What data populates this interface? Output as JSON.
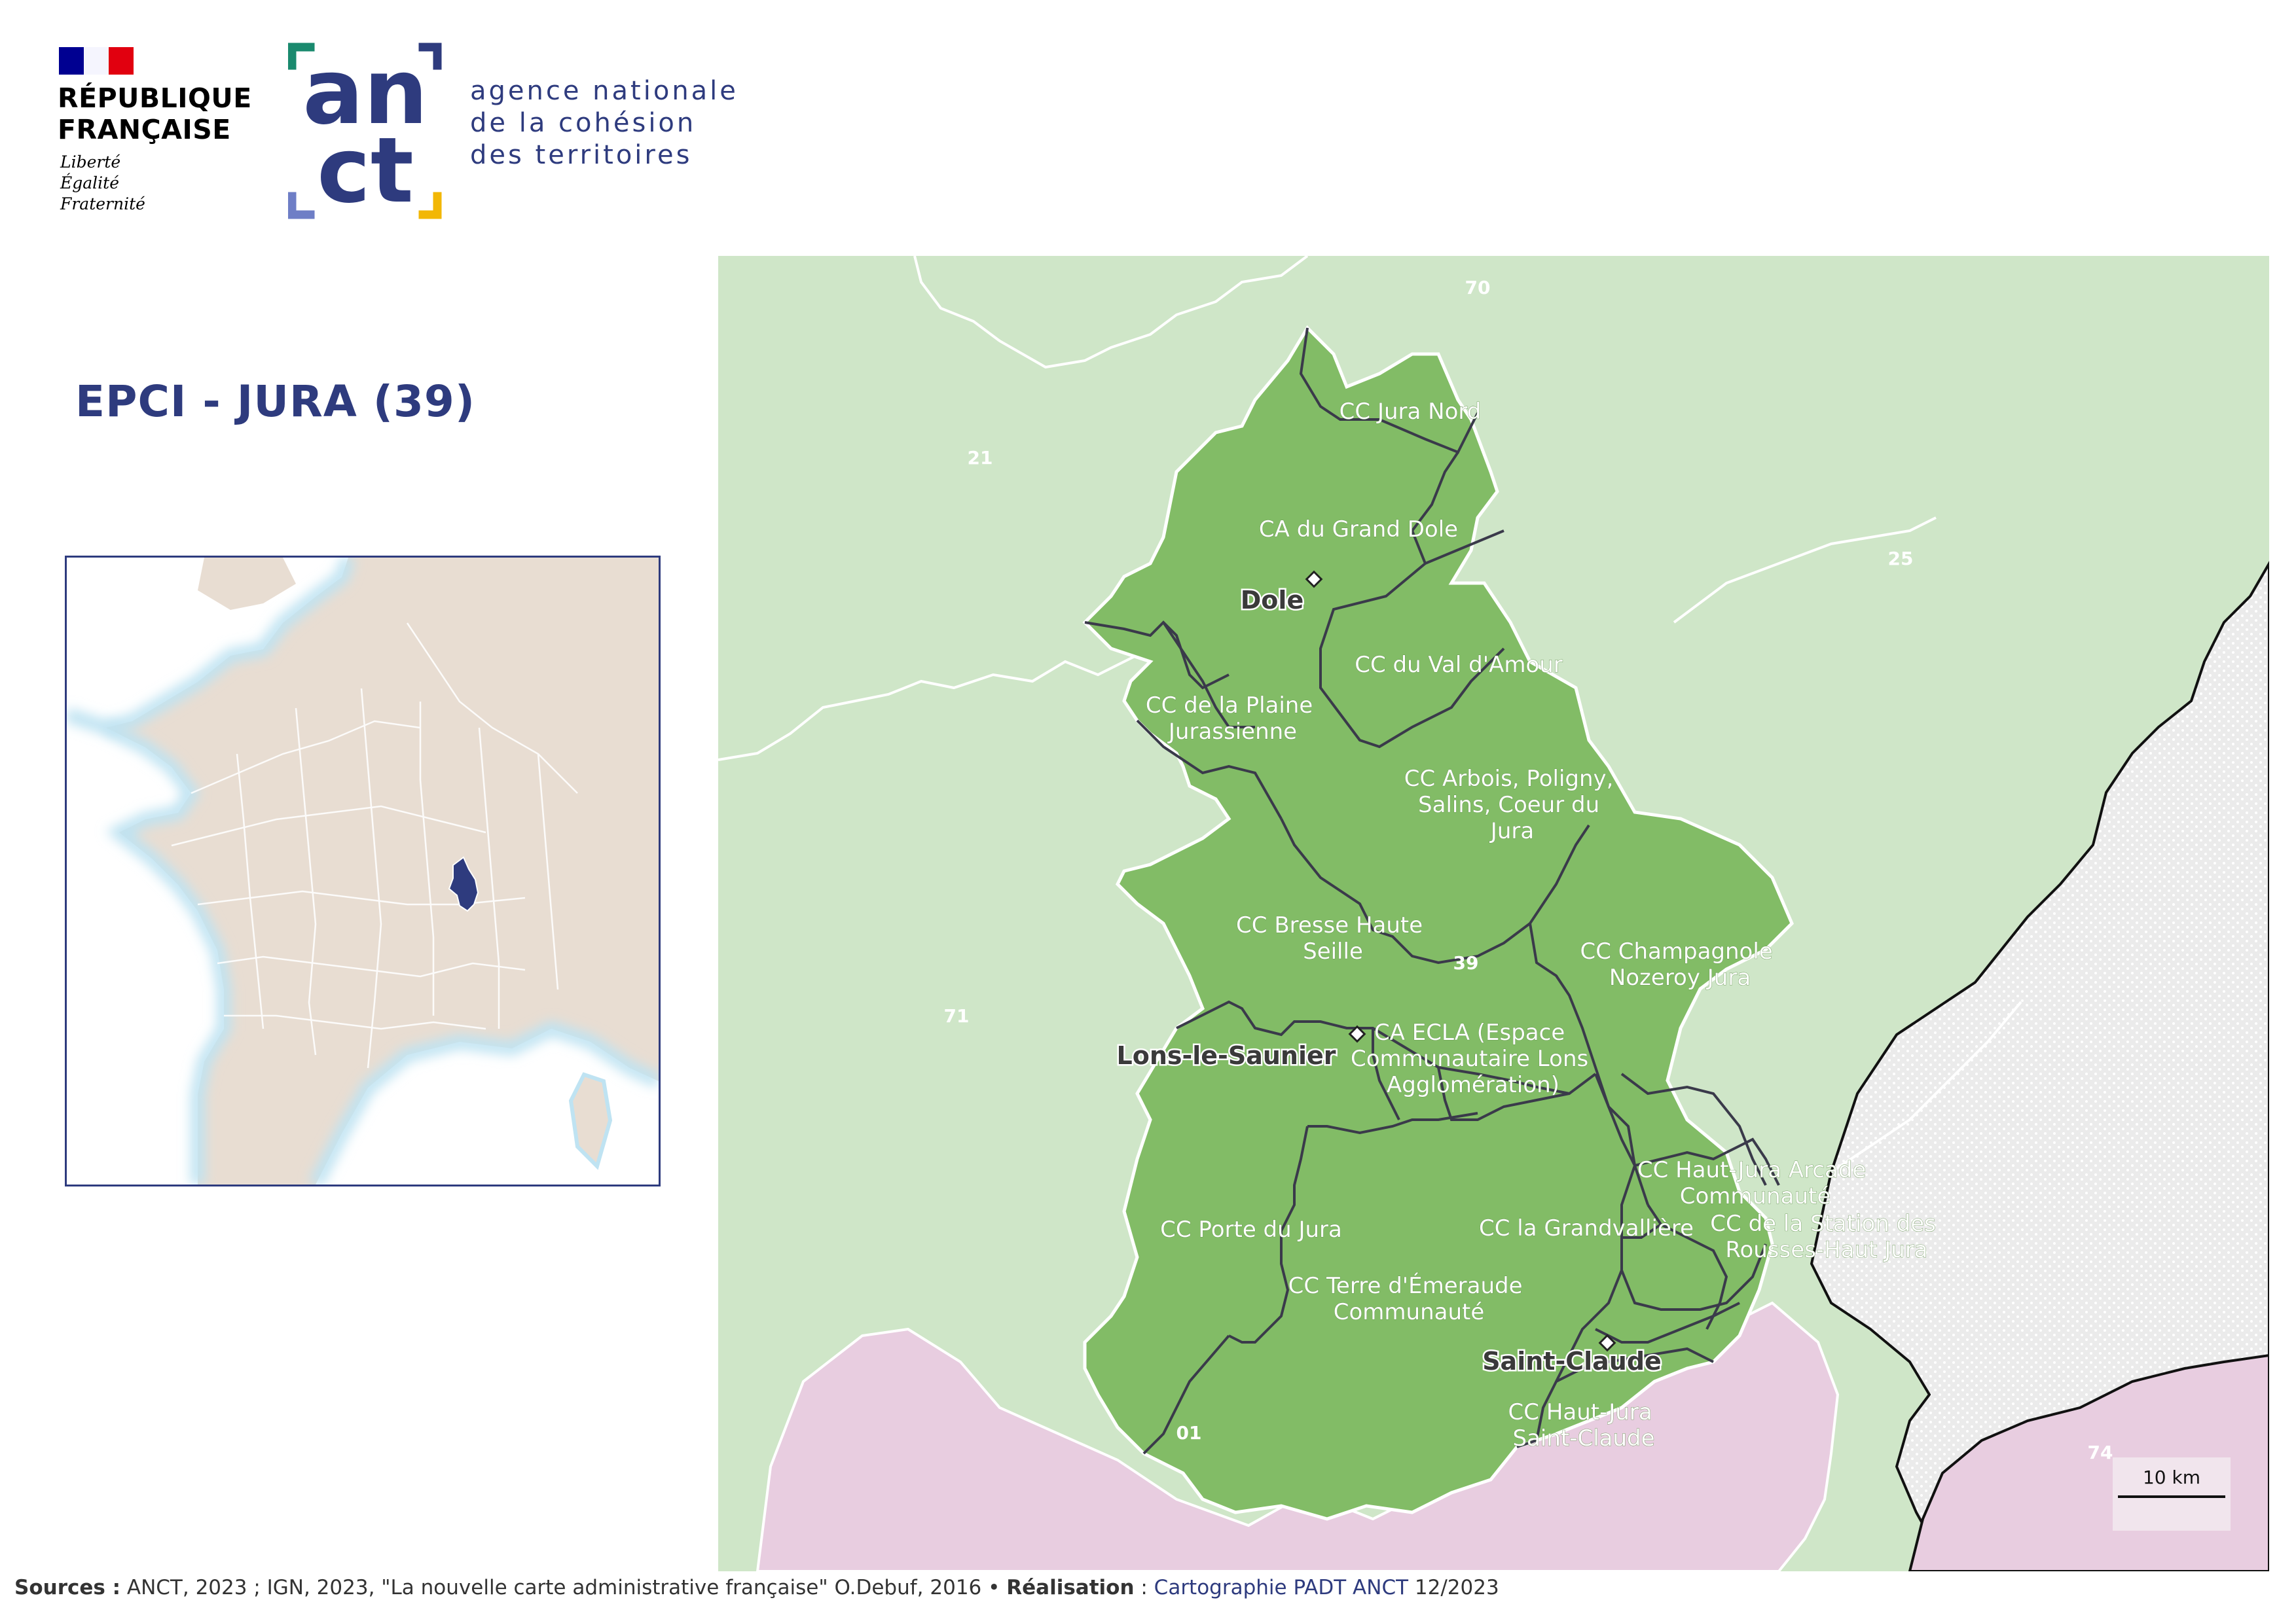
{
  "header": {
    "republic_lines": [
      "RÉPUBLIQUE",
      "FRANÇAISE"
    ],
    "motto_lines": [
      "Liberté",
      "Égalité",
      "Fraternité"
    ],
    "anct_logo_top": "an",
    "anct_logo_bottom": "ct",
    "anct_lines": [
      "agence nationale",
      "de la cohésion",
      "des territoires"
    ]
  },
  "title": "EPCI - JURA (39)",
  "colors": {
    "navy": "#2e3b7e",
    "jura_fill": "#82bc66",
    "neighbor_dept": "#cfe6c8",
    "ain_region": "#e8cde0",
    "switzerland": "#ebebeb",
    "inset_land": "#e8ddd2",
    "inset_highlight": "#2e3b7e"
  },
  "map": {
    "departments": [
      {
        "code": "70"
      },
      {
        "code": "21"
      },
      {
        "code": "25"
      },
      {
        "code": "39"
      },
      {
        "code": "71"
      },
      {
        "code": "01"
      },
      {
        "code": "74"
      }
    ],
    "epci": [
      {
        "lines": [
          "CC Jura Nord"
        ]
      },
      {
        "lines": [
          "CA du Grand Dole"
        ]
      },
      {
        "lines": [
          "CC du Val d'Amour"
        ]
      },
      {
        "lines": [
          "CC de la Plaine",
          "Jurassienne"
        ]
      },
      {
        "lines": [
          "CC Arbois, Poligny,",
          "Salins, Coeur du",
          "Jura"
        ]
      },
      {
        "lines": [
          "CC Bresse Haute",
          "Seille"
        ]
      },
      {
        "lines": [
          "CC Champagnole",
          "Nozeroy Jura"
        ]
      },
      {
        "lines": [
          "CA ECLA (Espace",
          "Communautaire Lons",
          "Agglomération)"
        ]
      },
      {
        "lines": [
          "CC Haut-Jura Arcade",
          "Communauté"
        ]
      },
      {
        "lines": [
          "CC de la Station des",
          "Rousses-Haut Jura"
        ]
      },
      {
        "lines": [
          "CC Porte du Jura"
        ]
      },
      {
        "lines": [
          "CC la Grandvallière"
        ]
      },
      {
        "lines": [
          "CC Terre d'Émeraude",
          "Communauté"
        ]
      },
      {
        "lines": [
          "CC Haut-Jura",
          "Saint-Claude"
        ]
      }
    ],
    "towns": [
      "Dole",
      "Lons-le-Saunier",
      "Saint-Claude"
    ],
    "scale_label": "10 km"
  },
  "footer": {
    "sources_label": "Sources :",
    "sources_text": " ANCT, 2023 ; IGN, 2023, \"La nouvelle carte administrative française\" O.Debuf, 2016 • ",
    "realisation_label": "Réalisation",
    "realisation_sep": " : ",
    "realisation_text": "Cartographie PADT ANCT",
    "date": " 12/2023"
  }
}
